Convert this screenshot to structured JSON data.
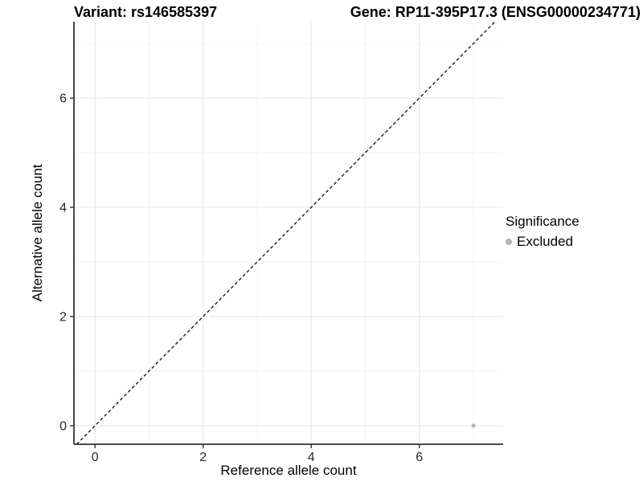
{
  "header": {
    "left_title": "Variant: rs146585397",
    "right_title": "Gene: RP11-395P17.3 (ENSG00000234771)"
  },
  "chart_data": {
    "type": "scatter",
    "xlabel": "Reference allele count",
    "ylabel": "Alternative allele count",
    "xlim": [
      -0.39,
      7.55
    ],
    "ylim": [
      -0.34,
      7.4
    ],
    "x_major_ticks": [
      0,
      2,
      4,
      6
    ],
    "y_major_ticks": [
      0,
      2,
      4,
      6
    ],
    "x_minor_ticks": [
      1,
      3,
      5,
      7
    ],
    "y_minor_ticks": [
      1,
      3,
      5,
      7
    ],
    "grid": "major+minor",
    "identity_line": {
      "equation": "y = x",
      "style": "dashed",
      "color": "#1a1a1a"
    },
    "series": [
      {
        "name": "Excluded",
        "color": "#b5b5b5",
        "points": [
          {
            "x": 7,
            "y": 0
          }
        ]
      }
    ],
    "legend": {
      "title": "Significance",
      "position": "right",
      "entries": [
        {
          "label": "Excluded",
          "color": "#b5b5b5"
        }
      ]
    },
    "colors": {
      "grid_major": "#e9e9e9",
      "grid_minor": "#f4f4f4",
      "axis_line": "#333333",
      "tick_label": "#262626"
    }
  }
}
